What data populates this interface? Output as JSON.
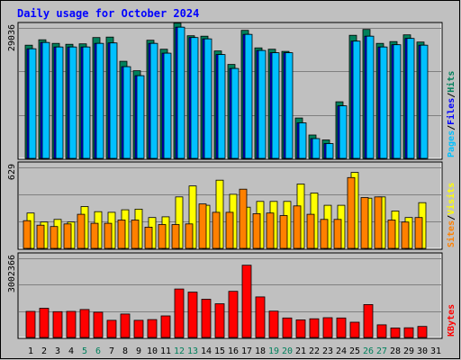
{
  "chart_data": {
    "type": "bar",
    "title": "Daily usage for October 2024",
    "categories": [
      "1",
      "2",
      "3",
      "4",
      "5",
      "6",
      "7",
      "8",
      "9",
      "10",
      "11",
      "12",
      "13",
      "14",
      "15",
      "16",
      "17",
      "18",
      "19",
      "20",
      "21",
      "22",
      "23",
      "24",
      "25",
      "26",
      "27",
      "28",
      "29",
      "30",
      "31"
    ],
    "weekend_days": [
      "5",
      "6",
      "12",
      "13",
      "19",
      "20",
      "26",
      "27"
    ],
    "panels": [
      {
        "id": "hits",
        "ymax_label": "29036",
        "ymax": 29036,
        "grid": true,
        "legend": [
          "Pages",
          "Files",
          "Hits"
        ],
        "series": [
          {
            "name": "Hits",
            "values": [
              25200,
              26400,
              25600,
              25400,
              25500,
              26900,
              27000,
              21600,
              19500,
              26300,
              24300,
              30100,
              27300,
              27200,
              23900,
              20900,
              28500,
              24600,
              24300,
              23800,
              9000,
              5200,
              4100,
              12600,
              27400,
              28700,
              25600,
              26000,
              27500,
              25900,
              0
            ]
          },
          {
            "name": "Files",
            "values": [
              24400,
              25800,
              24800,
              24800,
              24800,
              25600,
              25700,
              20400,
              18400,
              25600,
              23400,
              29200,
              26900,
              26600,
              23100,
              20000,
              27600,
              24000,
              23500,
              23500,
              7900,
              4400,
              3300,
              11700,
              26100,
              27200,
              24800,
              25300,
              26700,
              25200,
              0
            ]
          },
          {
            "name": "Pages",
            "values": [
              24400,
              25800,
              24800,
              24800,
              24800,
              25600,
              25700,
              20400,
              18400,
              25600,
              23400,
              29200,
              26900,
              26600,
              23100,
              20000,
              27600,
              24000,
              23500,
              23500,
              7900,
              4400,
              3300,
              11700,
              26100,
              27200,
              24800,
              25300,
              26700,
              25200,
              0
            ]
          }
        ]
      },
      {
        "id": "visits",
        "ymax_label": "629",
        "ymax": 629,
        "grid": true,
        "legend": [
          "Sites",
          "Visits"
        ],
        "series": [
          {
            "name": "Visits",
            "values": [
              275,
              205,
              225,
              205,
              325,
              285,
              280,
              300,
              305,
              240,
              245,
              400,
              485,
              335,
              530,
              420,
              320,
              365,
              365,
              365,
              500,
              430,
              335,
              335,
              590,
              390,
              400,
              290,
              240,
              355,
              0
            ]
          },
          {
            "name": "Sites",
            "values": [
              215,
              180,
              170,
              190,
              265,
              195,
              195,
              220,
              220,
              165,
              185,
              185,
              190,
              345,
              280,
              280,
              460,
              270,
              275,
              255,
              330,
              265,
              225,
              225,
              550,
              395,
              400,
              220,
              205,
              240,
              0
            ]
          }
        ]
      },
      {
        "id": "kbytes",
        "ymax_label": "3002366",
        "ymax": 3002366,
        "grid": true,
        "legend": [
          "KBytes"
        ],
        "series": [
          {
            "name": "KBytes",
            "values": [
              990000,
              1110000,
              980000,
              990000,
              1060000,
              960000,
              650000,
              890000,
              650000,
              680000,
              820000,
              1840000,
              1720000,
              1450000,
              1280000,
              1750000,
              2740000,
              1540000,
              1000000,
              740000,
              670000,
              710000,
              750000,
              740000,
              580000,
              1250000,
              480000,
              360000,
              370000,
              420000,
              0
            ]
          }
        ]
      }
    ],
    "colors": {
      "hits": "#00805c",
      "files": "#0000ff",
      "pages": "#00c0ff",
      "visits": "#ffff00",
      "sites": "#ff8000",
      "kbytes": "#ff0000",
      "title": "#0000ff",
      "weekend_label": "#00805c",
      "plot_bg": "#c0c0c0",
      "frame_bg": "#c0c0c0"
    }
  }
}
